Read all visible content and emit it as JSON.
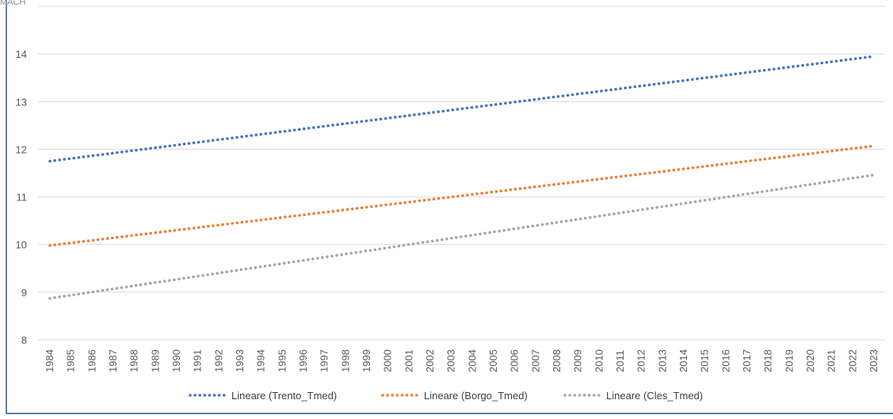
{
  "corner_text": "MACH",
  "chart_data": {
    "type": "line",
    "title": "",
    "xlabel": "",
    "ylabel": "",
    "x": [
      "1984",
      "1985",
      "1986",
      "1987",
      "1988",
      "1989",
      "1990",
      "1991",
      "1992",
      "1993",
      "1994",
      "1995",
      "1996",
      "1997",
      "1998",
      "1999",
      "2000",
      "2001",
      "2002",
      "2003",
      "2004",
      "2005",
      "2006",
      "2007",
      "2008",
      "2009",
      "2010",
      "2011",
      "2012",
      "2013",
      "2014",
      "2015",
      "2016",
      "2017",
      "2018",
      "2019",
      "2020",
      "2021",
      "2022",
      "2023"
    ],
    "ylim": [
      8,
      15
    ],
    "yticks": [
      8,
      9,
      10,
      11,
      12,
      13,
      14
    ],
    "grid": true,
    "legend_position": "bottom",
    "series": [
      {
        "name": "Lineare (Trento_Tmed)",
        "start": 11.75,
        "end": 13.95,
        "color": "#4472c4",
        "style": "dotted"
      },
      {
        "name": "Lineare (Borgo_Tmed)",
        "start": 9.98,
        "end": 12.07,
        "color": "#ed7d31",
        "style": "dotted"
      },
      {
        "name": "Lineare (Cles_Tmed)",
        "start": 8.87,
        "end": 11.46,
        "color": "#a5a5a5",
        "style": "dotted"
      }
    ]
  }
}
